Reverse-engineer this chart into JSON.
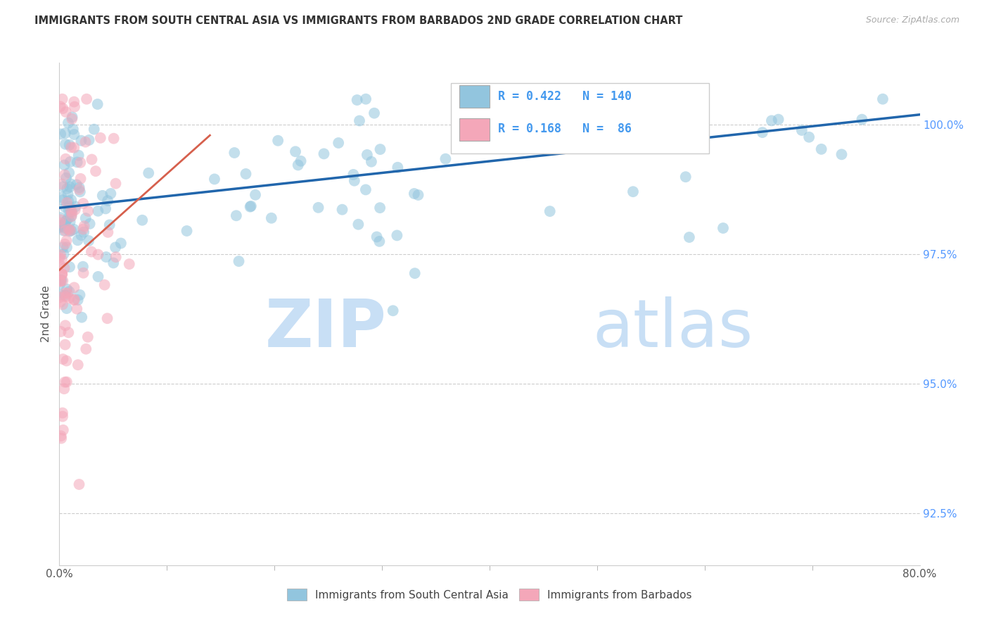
{
  "title": "IMMIGRANTS FROM SOUTH CENTRAL ASIA VS IMMIGRANTS FROM BARBADOS 2ND GRADE CORRELATION CHART",
  "source": "Source: ZipAtlas.com",
  "ylabel": "2nd Grade",
  "ytick_values": [
    92.5,
    95.0,
    97.5,
    100.0
  ],
  "xlim": [
    0.0,
    80.0
  ],
  "ylim": [
    91.5,
    101.2
  ],
  "legend_blue_label": "Immigrants from South Central Asia",
  "legend_pink_label": "Immigrants from Barbados",
  "R_blue": 0.422,
  "N_blue": 140,
  "R_pink": 0.168,
  "N_pink": 86,
  "blue_color": "#92c5de",
  "pink_color": "#f4a7b9",
  "trend_blue": "#2166ac",
  "trend_pink": "#d6604d",
  "watermark_zip": "ZIP",
  "watermark_atlas": "atlas",
  "watermark_color_zip": "#c8dff5",
  "watermark_color_atlas": "#c8dff5"
}
